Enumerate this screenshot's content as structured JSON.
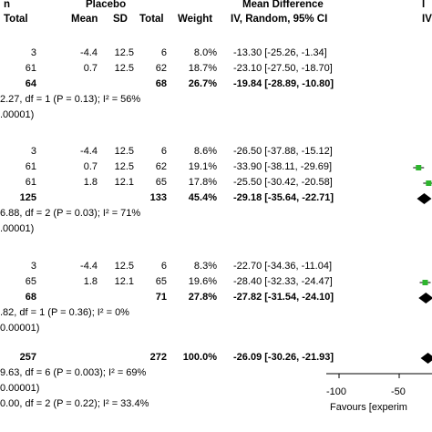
{
  "header": {
    "group_left": "n",
    "group_placebo": "Placebo",
    "col_total1": "Total",
    "col_mean": "Mean",
    "col_sd": "SD",
    "col_total2": "Total",
    "col_weight": "Weight",
    "md_title": "Mean Difference",
    "md_sub": "IV, Random, 95% CI",
    "right_title": "I",
    "right_sub": "IV"
  },
  "rows": [
    {
      "a": "3",
      "mean": "-4.4",
      "sd": "12.5",
      "n": "6",
      "w": "8.0%",
      "ci": "-13.30 [-25.26, -1.34]"
    },
    {
      "a": "61",
      "mean": "0.7",
      "sd": "12.5",
      "n": "62",
      "w": "18.7%",
      "ci": "-23.10 [-27.50, -18.70]"
    },
    {
      "a": "64",
      "mean": "",
      "sd": "",
      "n": "68",
      "w": "26.7%",
      "ci": "-19.84 [-28.89, -10.80]",
      "bold": true
    },
    {
      "a": "3",
      "mean": "-4.4",
      "sd": "12.5",
      "n": "6",
      "w": "8.6%",
      "ci": "-26.50 [-37.88, -15.12]"
    },
    {
      "a": "61",
      "mean": "0.7",
      "sd": "12.5",
      "n": "62",
      "w": "19.1%",
      "ci": "-33.90 [-38.11, -29.69]"
    },
    {
      "a": "61",
      "mean": "1.8",
      "sd": "12.1",
      "n": "65",
      "w": "17.8%",
      "ci": "-25.50 [-30.42, -20.58]"
    },
    {
      "a": "125",
      "mean": "",
      "sd": "",
      "n": "133",
      "w": "45.4%",
      "ci": "-29.18 [-35.64, -22.71]",
      "bold": true
    },
    {
      "a": "3",
      "mean": "-4.4",
      "sd": "12.5",
      "n": "6",
      "w": "8.3%",
      "ci": "-22.70 [-34.36, -11.04]"
    },
    {
      "a": "65",
      "mean": "1.8",
      "sd": "12.1",
      "n": "65",
      "w": "19.6%",
      "ci": "-28.40 [-32.33, -24.47]"
    },
    {
      "a": "68",
      "mean": "",
      "sd": "",
      "n": "71",
      "w": "27.8%",
      "ci": "-27.82 [-31.54, -24.10]",
      "bold": true
    },
    {
      "a": "257",
      "mean": "",
      "sd": "",
      "n": "272",
      "w": "100.0%",
      "ci": "-26.09 [-30.26, -21.93]",
      "bold": true
    }
  ],
  "notes": {
    "het1": "2.27, df = 1 (P = 0.13); I² = 56%",
    "p1": ".00001)",
    "het2": "6.88, df = 2 (P = 0.03); I² = 71%",
    "p2": ".00001)",
    "het3": ".82, df = 1 (P = 0.36); I² = 0%",
    "p3": "0.00001)",
    "het4": "9.63, df = 6 (P = 0.003); I² = 69%",
    "p4": "0.00001)",
    "het5": "0.00, df = 2 (P = 0.22); I² = 33.4%"
  },
  "chart_data": {
    "type": "scatter",
    "title": "",
    "xlabel": "Favours [experim",
    "x_ticks": [
      "-100",
      "-50"
    ],
    "xlim": [
      -100,
      -30
    ],
    "markers": [
      {
        "row": 4,
        "kind": "square",
        "x": -33.9
      },
      {
        "row": 5,
        "kind": "square",
        "x": -25.5
      },
      {
        "row": 6,
        "kind": "diamond",
        "x": -29.18
      },
      {
        "row": 8,
        "kind": "square",
        "x": -28.4
      },
      {
        "row": 9,
        "kind": "diamond",
        "x": -27.82
      },
      {
        "row": 10,
        "kind": "diamond",
        "x": -26.09
      }
    ],
    "colors": {
      "square": "#2db52d",
      "diamond": "#000000"
    }
  }
}
